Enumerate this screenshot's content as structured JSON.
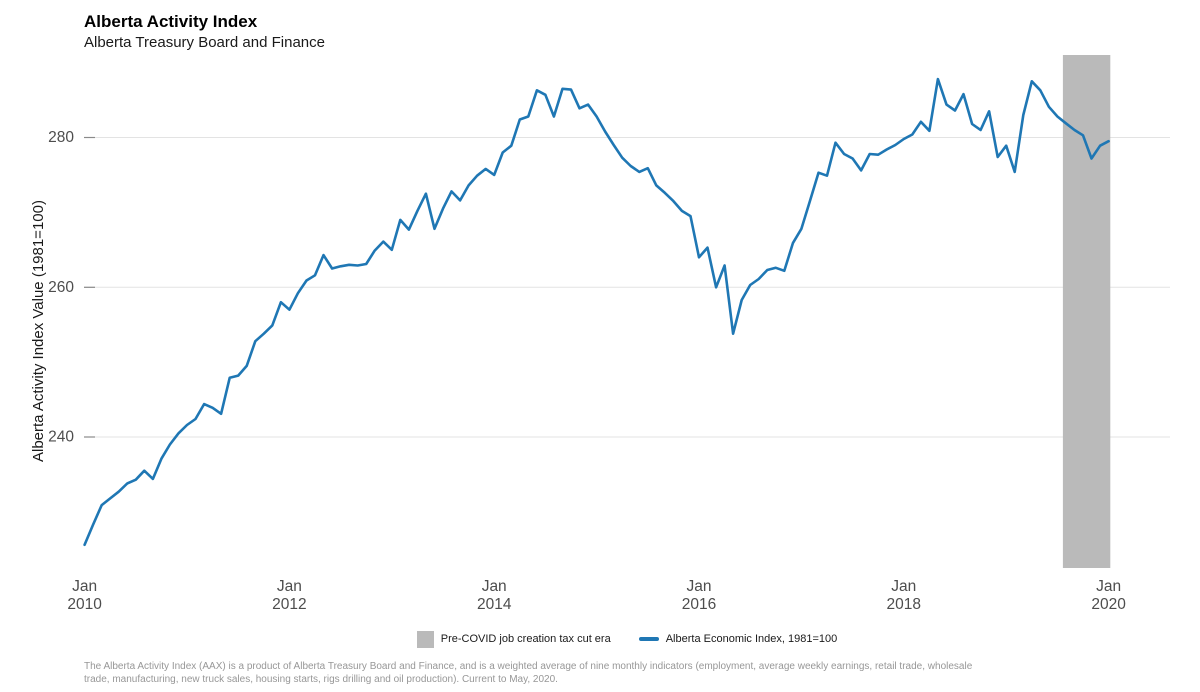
{
  "header": {
    "title": "Alberta Activity Index",
    "subtitle": "Alberta Treasury Board and Finance"
  },
  "chart_data": {
    "type": "line",
    "title": "Alberta Activity Index",
    "subtitle": "Alberta Treasury Board and Finance",
    "xlabel": "",
    "ylabel": "Alberta Activity Index Value (1981=100)",
    "grid": "horizontal-only",
    "legend_position": "bottom-center",
    "ylim": [
      222.5,
      291
    ],
    "y_ticks": [
      240,
      260,
      280
    ],
    "x_ticks": [
      {
        "month": "Jan",
        "year": "2010",
        "month_index": 0
      },
      {
        "month": "Jan",
        "year": "2012",
        "month_index": 24
      },
      {
        "month": "Jan",
        "year": "2014",
        "month_index": 48
      },
      {
        "month": "Jan",
        "year": "2016",
        "month_index": 72
      },
      {
        "month": "Jan",
        "year": "2018",
        "month_index": 96
      },
      {
        "month": "Jan",
        "year": "2020",
        "month_index": 120
      }
    ],
    "band": {
      "label": "Pre-COVID job creation tax cut era",
      "color": "#bababa",
      "from": "Jul 2019",
      "to": "Jan 2020",
      "start_month_index": 114.65,
      "end_month_index": 120.2
    },
    "series": [
      {
        "name": "Alberta Economic Index, 1981=100",
        "color": "#1f77b4",
        "start": "Jan 2010",
        "frequency": "monthly",
        "values": [
          225.6,
          228.3,
          230.9,
          231.8,
          232.7,
          233.8,
          234.3,
          235.5,
          234.4,
          237.1,
          239.0,
          240.5,
          241.6,
          242.4,
          244.4,
          243.9,
          243.1,
          247.9,
          248.2,
          249.5,
          252.8,
          253.8,
          254.9,
          258.0,
          257.0,
          259.2,
          260.9,
          261.6,
          264.3,
          262.5,
          262.8,
          263.0,
          262.9,
          263.1,
          264.9,
          266.1,
          265.0,
          269.0,
          267.7,
          270.2,
          272.5,
          267.8,
          270.5,
          272.8,
          271.6,
          273.6,
          274.9,
          275.8,
          275.0,
          278.0,
          278.9,
          282.4,
          282.8,
          286.3,
          285.7,
          282.8,
          286.5,
          286.4,
          283.9,
          284.4,
          282.8,
          280.8,
          279.0,
          277.3,
          276.2,
          275.4,
          275.9,
          273.6,
          272.6,
          271.5,
          270.2,
          269.5,
          264.0,
          265.3,
          260.0,
          262.9,
          253.8,
          258.3,
          260.3,
          261.1,
          262.3,
          262.6,
          262.2,
          265.9,
          267.8,
          271.5,
          275.3,
          274.9,
          279.3,
          277.8,
          277.2,
          275.6,
          277.8,
          277.7,
          278.4,
          279.0,
          279.8,
          280.4,
          282.1,
          280.9,
          287.8,
          284.4,
          283.6,
          285.8,
          281.8,
          281.0,
          283.5,
          277.4,
          278.9,
          275.4,
          283.0,
          287.5,
          286.3,
          284.1,
          282.8,
          281.9,
          281.0,
          280.3,
          277.2,
          278.9,
          279.5
        ]
      }
    ]
  },
  "legend": {
    "band_label": "Pre-COVID job creation tax cut era",
    "line_label": "Alberta Economic Index, 1981=100"
  },
  "footnote": {
    "line1": "The Alberta Activity Index (AAX) is a product of Alberta Treasury Board and Finance, and is a weighted average of nine monthly indicators (employment, average weekly earnings, retail trade, wholesale",
    "line2": "trade, manufacturing, new truck sales, housing starts, rigs drilling and oil production). Current to May, 2020."
  },
  "colors": {
    "line": "#1f77b4",
    "band": "#bababa",
    "gridline": "#e3e3e3",
    "tick_text": "#4d4d4d"
  }
}
